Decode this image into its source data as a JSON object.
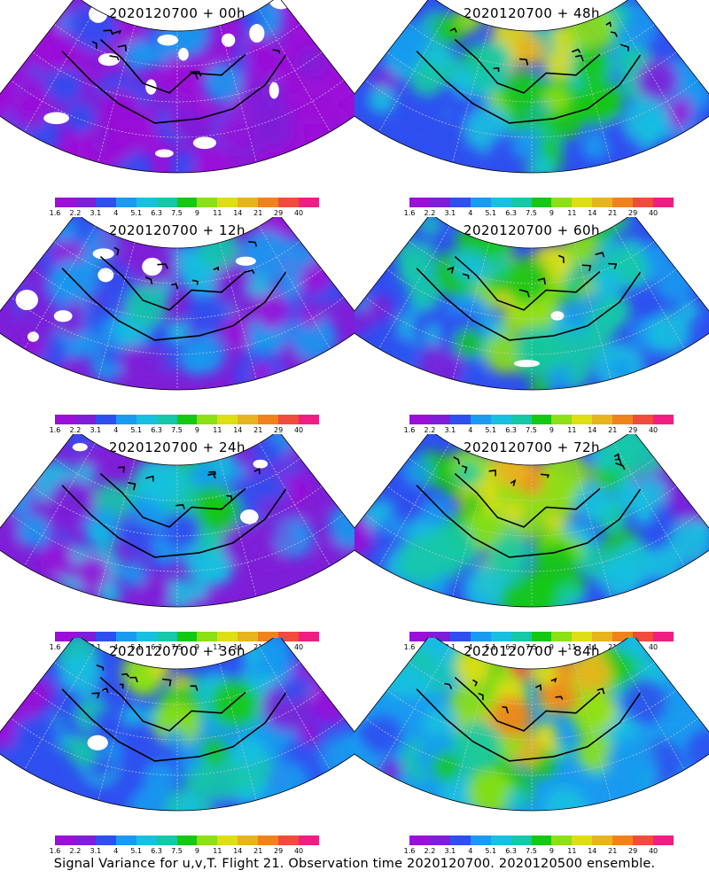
{
  "panels": [
    {
      "title": "2020120700 + 00h",
      "intensity": 0.15,
      "missing_fraction": 0.3
    },
    {
      "title": "2020120700 + 48h",
      "intensity": 0.62,
      "missing_fraction": 0.0
    },
    {
      "title": "2020120700 + 12h",
      "intensity": 0.3,
      "missing_fraction": 0.18
    },
    {
      "title": "2020120700 + 60h",
      "intensity": 0.7,
      "missing_fraction": 0.04
    },
    {
      "title": "2020120700 + 24h",
      "intensity": 0.42,
      "missing_fraction": 0.08
    },
    {
      "title": "2020120700 + 72h",
      "intensity": 0.78,
      "missing_fraction": 0.0
    },
    {
      "title": "2020120700 + 36h",
      "intensity": 0.52,
      "missing_fraction": 0.02
    },
    {
      "title": "2020120700 + 84h",
      "intensity": 0.85,
      "missing_fraction": 0.0
    }
  ],
  "colorbar": {
    "labels": [
      "1.6",
      "2.2",
      "3.1",
      "4",
      "5.1",
      "6.3",
      "7.5",
      "9",
      "11",
      "14",
      "21",
      "29",
      "40"
    ],
    "colors": [
      "#9a10d8",
      "#7e1ed8",
      "#2f4ff0",
      "#1a9af0",
      "#18c0e0",
      "#14c8a8",
      "#14c814",
      "#8ce014",
      "#dede14",
      "#e8b41e",
      "#f0821e",
      "#f04b3c",
      "#f01e82"
    ]
  },
  "caption": "Signal Variance for u,v,T. Flight 21. Observation time 2020120700. 2020120500 ensemble."
}
